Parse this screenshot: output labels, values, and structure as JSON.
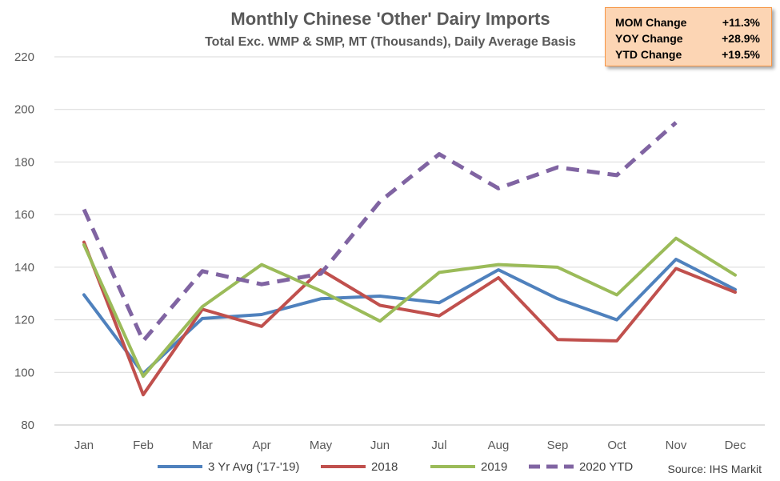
{
  "chart_data": {
    "type": "line",
    "title": "Monthly Chinese 'Other' Dairy Imports",
    "subtitle": "Total Exc. WMP & SMP, MT (Thousands), Daily Average Basis",
    "categories": [
      "Jan",
      "Feb",
      "Mar",
      "Apr",
      "May",
      "Jun",
      "Jul",
      "Aug",
      "Sep",
      "Oct",
      "Nov",
      "Dec"
    ],
    "ylim": [
      80,
      220
    ],
    "yticks": [
      80,
      100,
      120,
      140,
      160,
      180,
      200,
      220
    ],
    "grid": true,
    "legend_position": "bottom",
    "series": [
      {
        "name": "3 Yr Avg ('17-'19)",
        "color": "#4f81bd",
        "dashed": false,
        "values": [
          129.5,
          99.5,
          120.5,
          122,
          128,
          129,
          126.5,
          139,
          128,
          120,
          143,
          131.5
        ]
      },
      {
        "name": "2018",
        "color": "#c0504d",
        "dashed": false,
        "values": [
          149.5,
          91.5,
          124,
          117.5,
          139,
          125.5,
          121.5,
          136,
          112.5,
          112,
          139.5,
          130.5
        ]
      },
      {
        "name": "2019",
        "color": "#9bbb59",
        "dashed": false,
        "values": [
          148.5,
          98.5,
          125,
          141,
          131,
          119.5,
          138,
          141,
          140,
          129.5,
          151,
          137
        ]
      },
      {
        "name": "2020 YTD",
        "color": "#8064a2",
        "dashed": true,
        "values": [
          162,
          112,
          138.5,
          133.5,
          137.5,
          165,
          183,
          170,
          178,
          175,
          195,
          null
        ]
      }
    ],
    "source": "Source: IHS Markit"
  },
  "stats_box": [
    {
      "label": "MOM Change",
      "value": "+11.3%"
    },
    {
      "label": "YOY Change",
      "value": "+28.9%"
    },
    {
      "label": "YTD Change",
      "value": "+19.5%"
    }
  ]
}
